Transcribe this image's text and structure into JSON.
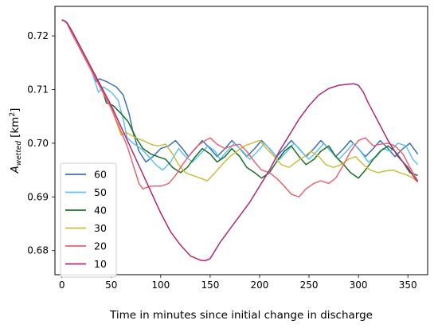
{
  "chart_data": {
    "type": "line",
    "title": "",
    "xlabel": "Time in minutes since initial change in discharge",
    "ylabel_main": "A",
    "ylabel_sub": "wetted",
    "ylabel_unit": "[km",
    "ylabel_unit_sup": "2",
    "ylabel_unit_close": "]",
    "xlim": [
      -7,
      370
    ],
    "ylim": [
      0.6755,
      0.7255
    ],
    "xticks": [
      0,
      50,
      100,
      150,
      200,
      250,
      300,
      350
    ],
    "yticks": [
      0.68,
      0.69,
      0.7,
      0.71,
      0.72
    ],
    "ytick_labels": [
      "0.68",
      "0.69",
      "0.70",
      "0.71",
      "0.72"
    ],
    "grid": false,
    "legend_position": "lower-left",
    "series": [
      {
        "name": "60",
        "color": "#3b6fb0",
        "x": [
          0,
          5,
          10,
          20,
          30,
          35,
          38,
          45,
          55,
          62,
          68,
          72,
          78,
          85,
          92,
          100,
          108,
          115,
          122,
          128,
          135,
          142,
          150,
          157,
          165,
          172,
          180,
          187,
          195,
          202,
          210,
          217,
          225,
          232,
          240,
          247,
          255,
          262,
          270,
          277,
          285,
          292,
          300,
          307,
          315,
          322,
          330,
          337,
          345,
          352,
          360
        ],
        "y": [
          0.723,
          0.7225,
          0.7205,
          0.717,
          0.7135,
          0.7115,
          0.712,
          0.7115,
          0.7105,
          0.709,
          0.7055,
          0.702,
          0.6985,
          0.6965,
          0.6975,
          0.699,
          0.6995,
          0.7005,
          0.699,
          0.6975,
          0.699,
          0.7005,
          0.699,
          0.6975,
          0.699,
          0.7005,
          0.699,
          0.6975,
          0.699,
          0.7005,
          0.699,
          0.6975,
          0.699,
          0.7005,
          0.699,
          0.6975,
          0.699,
          0.7005,
          0.699,
          0.6975,
          0.699,
          0.7005,
          0.699,
          0.6975,
          0.699,
          0.7005,
          0.699,
          0.6975,
          0.699,
          0.7,
          0.698
        ]
      },
      {
        "name": "50",
        "color": "#5ec2ec",
        "x": [
          0,
          5,
          10,
          20,
          30,
          37,
          42,
          50,
          57,
          62,
          66,
          72,
          80,
          88,
          95,
          102,
          110,
          118,
          125,
          132,
          140,
          148,
          155,
          160,
          167,
          175,
          183,
          190,
          198,
          205,
          212,
          220,
          228,
          235,
          242,
          250,
          258,
          265,
          272,
          280,
          288,
          295,
          302,
          310,
          318,
          325,
          332,
          340,
          348,
          355,
          360
        ],
        "y": [
          0.723,
          0.7225,
          0.7205,
          0.717,
          0.7135,
          0.7095,
          0.7105,
          0.7095,
          0.708,
          0.7045,
          0.701,
          0.7,
          0.699,
          0.6975,
          0.696,
          0.695,
          0.6965,
          0.699,
          0.6975,
          0.6965,
          0.698,
          0.6995,
          0.6985,
          0.697,
          0.6985,
          0.7,
          0.6985,
          0.697,
          0.6985,
          0.7,
          0.6985,
          0.697,
          0.6985,
          0.7,
          0.6985,
          0.697,
          0.6985,
          0.7,
          0.6985,
          0.697,
          0.6985,
          0.7,
          0.6985,
          0.6965,
          0.6975,
          0.699,
          0.6985,
          0.7,
          0.6995,
          0.697,
          0.696
        ]
      },
      {
        "name": "40",
        "color": "#1a6e25",
        "x": [
          0,
          5,
          10,
          20,
          30,
          40,
          45,
          52,
          60,
          67,
          75,
          82,
          90,
          97,
          105,
          112,
          120,
          127,
          135,
          142,
          150,
          157,
          165,
          172,
          180,
          187,
          195,
          202,
          210,
          217,
          225,
          232,
          240,
          247,
          255,
          262,
          270,
          277,
          285,
          292,
          300,
          307,
          315,
          322,
          330,
          337,
          345,
          352,
          360
        ],
        "y": [
          0.723,
          0.7225,
          0.7205,
          0.717,
          0.7135,
          0.7105,
          0.7075,
          0.707,
          0.7055,
          0.704,
          0.701,
          0.699,
          0.698,
          0.6975,
          0.697,
          0.6955,
          0.6945,
          0.6955,
          0.6975,
          0.699,
          0.698,
          0.6965,
          0.6975,
          0.699,
          0.6975,
          0.6955,
          0.6945,
          0.6935,
          0.6945,
          0.6965,
          0.6985,
          0.6995,
          0.6975,
          0.696,
          0.697,
          0.6985,
          0.6995,
          0.6975,
          0.696,
          0.6945,
          0.6935,
          0.695,
          0.697,
          0.6985,
          0.6995,
          0.6985,
          0.6965,
          0.6945,
          0.694
        ]
      },
      {
        "name": "30",
        "color": "#c9bd3c",
        "x": [
          0,
          5,
          10,
          20,
          30,
          40,
          50,
          55,
          60,
          65,
          70,
          75,
          82,
          90,
          97,
          105,
          112,
          118,
          125,
          132,
          140,
          147,
          155,
          162,
          170,
          177,
          185,
          192,
          200,
          207,
          215,
          222,
          230,
          237,
          245,
          252,
          260,
          267,
          275,
          282,
          290,
          297,
          305,
          312,
          320,
          327,
          335,
          342,
          350,
          355,
          360
        ],
        "y": [
          0.723,
          0.7225,
          0.7205,
          0.717,
          0.7135,
          0.71,
          0.7065,
          0.704,
          0.7015,
          0.702,
          0.7015,
          0.701,
          0.7005,
          0.6998,
          0.6995,
          0.6998,
          0.698,
          0.696,
          0.6945,
          0.694,
          0.6935,
          0.693,
          0.6945,
          0.696,
          0.6975,
          0.6985,
          0.6995,
          0.7,
          0.7005,
          0.699,
          0.6975,
          0.696,
          0.6955,
          0.6965,
          0.6975,
          0.6985,
          0.6975,
          0.696,
          0.6955,
          0.696,
          0.697,
          0.6975,
          0.696,
          0.695,
          0.6945,
          0.6948,
          0.695,
          0.6945,
          0.694,
          0.6935,
          0.6928
        ]
      },
      {
        "name": "20",
        "color": "#e8636f",
        "x": [
          0,
          5,
          10,
          20,
          30,
          40,
          50,
          58,
          66,
          72,
          78,
          82,
          90,
          100,
          108,
          115,
          122,
          130,
          137,
          145,
          150,
          157,
          165,
          172,
          180,
          187,
          195,
          202,
          210,
          217,
          225,
          232,
          240,
          247,
          255,
          262,
          270,
          277,
          285,
          292,
          300,
          307,
          315,
          322,
          330,
          337,
          345,
          352,
          360
        ],
        "y": [
          0.723,
          0.7225,
          0.7205,
          0.717,
          0.7135,
          0.71,
          0.7065,
          0.703,
          0.6995,
          0.696,
          0.6925,
          0.6915,
          0.692,
          0.692,
          0.6925,
          0.694,
          0.696,
          0.698,
          0.6995,
          0.7005,
          0.701,
          0.6998,
          0.699,
          0.6995,
          0.6998,
          0.6985,
          0.6965,
          0.695,
          0.6945,
          0.6935,
          0.692,
          0.6905,
          0.69,
          0.6915,
          0.6925,
          0.693,
          0.6925,
          0.6935,
          0.696,
          0.6985,
          0.7005,
          0.701,
          0.6995,
          0.6998,
          0.7,
          0.6995,
          0.698,
          0.6955,
          0.693
        ]
      },
      {
        "name": "10",
        "color": "#b02779",
        "x": [
          0,
          3,
          6,
          10,
          20,
          30,
          40,
          50,
          60,
          70,
          80,
          90,
          100,
          110,
          120,
          130,
          140,
          145,
          150,
          155,
          160,
          170,
          180,
          190,
          200,
          210,
          220,
          230,
          240,
          250,
          260,
          270,
          280,
          290,
          295,
          300,
          305,
          310,
          320,
          330,
          340,
          350,
          355,
          360
        ],
        "y": [
          0.723,
          0.7228,
          0.7222,
          0.721,
          0.7175,
          0.714,
          0.7105,
          0.707,
          0.703,
          0.699,
          0.695,
          0.691,
          0.687,
          0.6835,
          0.681,
          0.679,
          0.6782,
          0.6781,
          0.6785,
          0.68,
          0.6815,
          0.684,
          0.6865,
          0.689,
          0.692,
          0.695,
          0.6985,
          0.7015,
          0.7045,
          0.707,
          0.709,
          0.7102,
          0.7108,
          0.711,
          0.7111,
          0.7108,
          0.7095,
          0.7075,
          0.704,
          0.7005,
          0.6975,
          0.6955,
          0.694,
          0.6928
        ]
      }
    ]
  }
}
